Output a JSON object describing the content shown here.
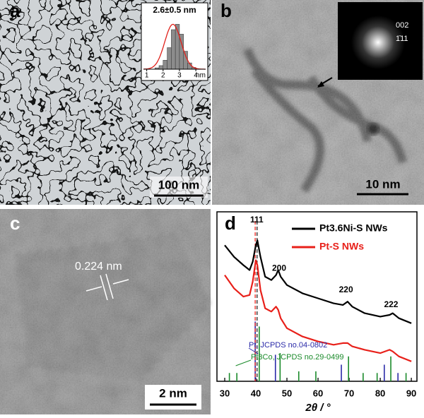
{
  "panels": {
    "a": {
      "label": "a",
      "scale_bar": "100 nm",
      "inset": {
        "type": "histogram",
        "title": "2.6±0.5 nm",
        "bins": [
          1.5,
          1.75,
          2.0,
          2.25,
          2.5,
          2.75,
          3.0,
          3.25,
          3.5,
          3.75,
          4.0
        ],
        "counts": [
          3,
          8,
          20,
          48,
          88,
          100,
          78,
          40,
          14,
          4
        ],
        "color": "#8c8c8c",
        "fit": {
          "mean": 2.6,
          "sd": 0.5,
          "color": "#e0201a"
        },
        "xlim": [
          0.8,
          4.6
        ],
        "ylim": [
          0,
          110
        ],
        "xticks": [
          1,
          2,
          3,
          4
        ],
        "xlabel": "nm"
      }
    },
    "b": {
      "label": "b",
      "scale_bar": "10 nm",
      "fft_labels": [
        "002",
        "1̄11"
      ]
    },
    "c": {
      "label": "c",
      "scale_bar": "2 nm",
      "annotation": "0.224 nm"
    }
  },
  "chart_data": {
    "type": "line",
    "label": "d",
    "xlabel": "2θ / °",
    "x": [
      30,
      33,
      36,
      38,
      39,
      40,
      40.5,
      41.5,
      43,
      45,
      46.5,
      47.2,
      48,
      50,
      55,
      60,
      65,
      68,
      69.5,
      71,
      75,
      80,
      83,
      84,
      86,
      90
    ],
    "series": [
      {
        "name": "Pt3.6Ni-S NWs",
        "color": "#000000",
        "values": [
          82,
          75,
          70,
          67,
          72,
          82,
          85,
          75,
          63,
          61,
          64,
          67,
          63,
          58,
          53,
          50,
          47,
          46,
          48,
          45,
          41,
          39,
          40,
          41,
          38,
          35
        ]
      },
      {
        "name": "Pt-S NWs",
        "color": "#e8201a",
        "values": [
          64,
          56,
          51,
          52,
          60,
          73,
          70,
          55,
          44,
          42,
          45,
          43,
          38,
          32,
          27,
          24,
          22,
          23,
          23,
          21,
          19,
          17,
          19,
          18,
          15,
          12
        ]
      }
    ],
    "references": [
      {
        "name": "Pt, JCPDS no.04-0802",
        "color": "#2a2aa8",
        "positions": [
          39.8,
          46.3,
          67.5,
          81.3,
          85.7
        ],
        "intensities": [
          36,
          16,
          10,
          10,
          5
        ]
      },
      {
        "name": "Pt3Co, JCPDS no.29-0499",
        "color": "#1a8a2a",
        "positions": [
          31.5,
          33.9,
          41.1,
          47.8,
          53.8,
          59.3,
          69.8,
          74.5,
          79.0,
          83.4,
          88.3
        ],
        "intensities": [
          5,
          5,
          33,
          17,
          6,
          6,
          15,
          5,
          5,
          15,
          5
        ]
      }
    ],
    "marker_lines": [
      {
        "x": 39.8,
        "color": "#e8201a"
      },
      {
        "x": 40.4,
        "color": "#222222"
      }
    ],
    "annotations": [
      {
        "text": "111",
        "x": 40.3,
        "y": 97
      },
      {
        "text": "200",
        "x": 47.5,
        "y": 68
      },
      {
        "text": "220",
        "x": 69,
        "y": 55
      },
      {
        "text": "222",
        "x": 83.5,
        "y": 46
      }
    ],
    "xlim": [
      27.5,
      91.8
    ],
    "ylim": [
      0,
      100
    ],
    "xticks": [
      30,
      40,
      50,
      60,
      70,
      80,
      90
    ]
  }
}
